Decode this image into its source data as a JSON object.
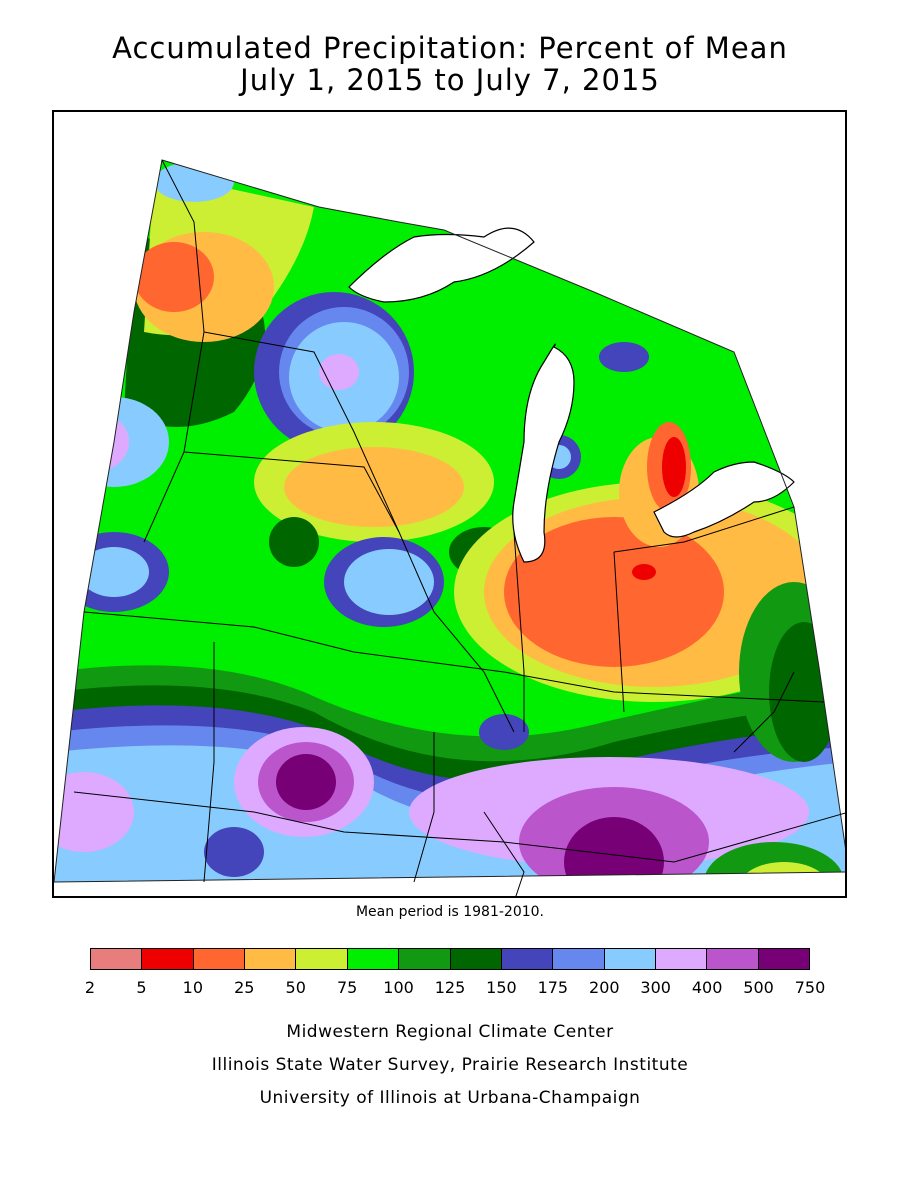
{
  "title_line1": "Accumulated Precipitation: Percent of Mean",
  "title_line2": "July 1, 2015 to July 7, 2015",
  "mean_period_note": "Mean period is 1981-2010.",
  "legend": {
    "colors": [
      "#e87d7d",
      "#ee0000",
      "#ff6630",
      "#ffbb44",
      "#ccee33",
      "#00ee00",
      "#119911",
      "#006600",
      "#4444bb",
      "#6688ee",
      "#88ccff",
      "#ddaaff",
      "#bb55cc",
      "#770077"
    ],
    "ticks": [
      "2",
      "5",
      "10",
      "25",
      "50",
      "75",
      "100",
      "125",
      "150",
      "175",
      "200",
      "300",
      "400",
      "500",
      "750"
    ]
  },
  "credits": {
    "line1": "Midwestern Regional Climate Center",
    "line2": "Illinois State Water Survey, Prairie Research Institute",
    "line3": "University of Illinois at Urbana-Champaign"
  }
}
